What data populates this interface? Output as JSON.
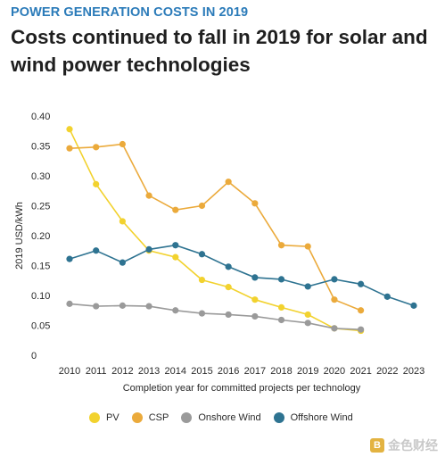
{
  "header": {
    "kicker": "POWER GENERATION COSTS IN 2019",
    "title": "Costs continued to fall in 2019 for solar and wind power technologies"
  },
  "chart_data": {
    "type": "line",
    "title": "Costs continued to fall in 2019 for solar and wind power technologies",
    "subtitle": "POWER GENERATION COSTS IN 2019",
    "xlabel": "Completion year for committed projects per technology",
    "ylabel": "2019 USD/kWh",
    "ylim": [
      0,
      0.4
    ],
    "yticks": [
      "0",
      "0.05",
      "0.10",
      "0.15",
      "0.20",
      "0.25",
      "0.30",
      "0.35",
      "0.40"
    ],
    "yticks_values": [
      0,
      0.05,
      0.1,
      0.15,
      0.2,
      0.25,
      0.3,
      0.35,
      0.4
    ],
    "x": [
      2010,
      2011,
      2012,
      2013,
      2014,
      2015,
      2016,
      2017,
      2018,
      2019,
      2020,
      2021,
      2022,
      2023
    ],
    "grid": false,
    "legend_position": "bottom",
    "series": [
      {
        "name": "PV",
        "color": "#f2d22e",
        "values": [
          0.378,
          0.286,
          0.224,
          0.175,
          0.164,
          0.126,
          0.114,
          0.093,
          0.08,
          0.068,
          0.045,
          0.041,
          null,
          null
        ]
      },
      {
        "name": "CSP",
        "color": "#ebaa3b",
        "values": [
          0.346,
          0.348,
          0.353,
          0.267,
          0.243,
          0.25,
          0.29,
          0.254,
          0.184,
          0.182,
          0.093,
          0.075,
          null,
          null
        ]
      },
      {
        "name": "Onshore Wind",
        "color": "#9a9a9a",
        "values": [
          0.086,
          0.082,
          0.083,
          0.082,
          0.075,
          0.07,
          0.068,
          0.065,
          0.059,
          0.054,
          0.045,
          0.043,
          null,
          null
        ]
      },
      {
        "name": "Offshore Wind",
        "color": "#2e7391",
        "values": [
          0.161,
          0.175,
          0.155,
          0.177,
          0.184,
          0.169,
          0.148,
          0.13,
          0.127,
          0.115,
          0.127,
          0.119,
          0.098,
          0.083
        ]
      }
    ]
  },
  "watermark": {
    "text": "金色财经",
    "logo_glyph": "B"
  }
}
